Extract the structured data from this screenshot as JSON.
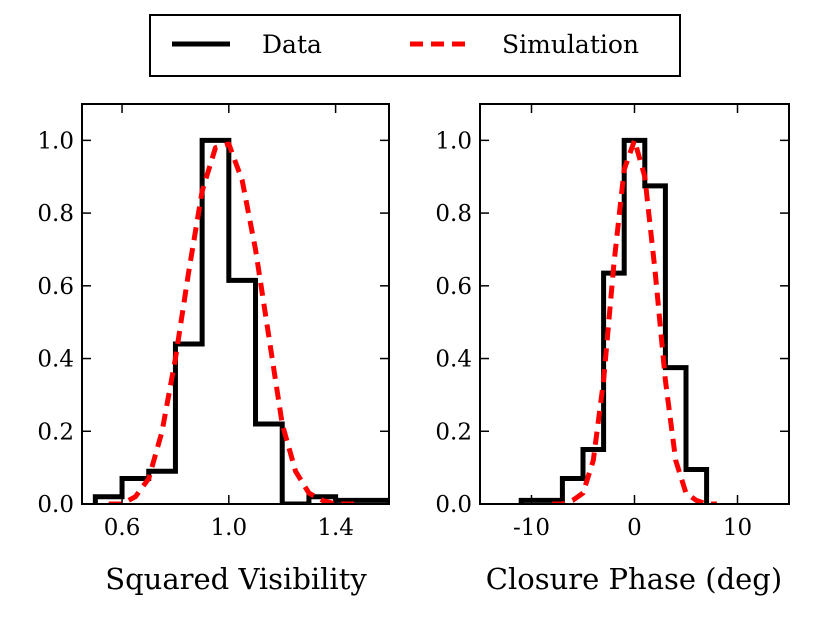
{
  "legend": {
    "entries": [
      {
        "label": "Data",
        "color": "#000000",
        "style": "solid"
      },
      {
        "label": "Simulation",
        "color": "#ff0000",
        "style": "dashed"
      }
    ],
    "placement": "top-center"
  },
  "chart_data": [
    {
      "type": "histogram",
      "title": "",
      "xlabel": "Squared Visibility",
      "ylabel": "",
      "xlim": [
        0.45,
        1.6
      ],
      "ylim": [
        0.0,
        1.1
      ],
      "xticks": [
        0.6,
        1.0,
        1.4
      ],
      "xtick_labels": [
        "0.6",
        "1.0",
        "1.4"
      ],
      "yticks": [
        0.0,
        0.2,
        0.4,
        0.6,
        0.8,
        1.0
      ],
      "ytick_labels": [
        "0.0",
        "0.2",
        "0.4",
        "0.6",
        "0.8",
        "1.0"
      ],
      "series": [
        {
          "name": "Data",
          "kind": "step",
          "bin_edges": [
            0.5,
            0.6,
            0.7,
            0.8,
            0.9,
            1.0,
            1.1,
            1.2,
            1.3,
            1.4,
            1.5,
            1.6
          ],
          "values": [
            0.02,
            0.07,
            0.09,
            0.44,
            1.0,
            0.615,
            0.22,
            0.0,
            0.02,
            0.01,
            0.01
          ]
        },
        {
          "name": "Simulation",
          "kind": "curve",
          "x": [
            0.55,
            0.6,
            0.65,
            0.7,
            0.75,
            0.8,
            0.85,
            0.9,
            0.95,
            1.0,
            1.05,
            1.1,
            1.15,
            1.2,
            1.25,
            1.3,
            1.35,
            1.4,
            1.45,
            1.5
          ],
          "values": [
            0.0,
            0.0,
            0.02,
            0.07,
            0.2,
            0.4,
            0.64,
            0.86,
            0.98,
            0.99,
            0.89,
            0.7,
            0.46,
            0.22,
            0.09,
            0.03,
            0.01,
            0.0,
            0.0,
            0.0
          ]
        }
      ]
    },
    {
      "type": "histogram",
      "title": "",
      "xlabel": "Closure Phase (deg)",
      "ylabel": "",
      "xlim": [
        -15,
        15
      ],
      "ylim": [
        0.0,
        1.1
      ],
      "xticks": [
        -10,
        0,
        10
      ],
      "xtick_labels": [
        "-10",
        "0",
        "10"
      ],
      "yticks": [
        0.0,
        0.2,
        0.4,
        0.6,
        0.8,
        1.0
      ],
      "ytick_labels": [
        "0.0",
        "0.2",
        "0.4",
        "0.6",
        "0.8",
        "1.0"
      ],
      "series": [
        {
          "name": "Data",
          "kind": "step",
          "bin_edges": [
            -11,
            -9,
            -7,
            -5,
            -3,
            -1,
            1,
            3,
            5,
            7
          ],
          "values": [
            0.01,
            0.01,
            0.07,
            0.15,
            0.635,
            1.0,
            0.875,
            0.375,
            0.095
          ]
        },
        {
          "name": "Simulation",
          "kind": "curve",
          "x": [
            -8,
            -7,
            -6,
            -5,
            -4,
            -3,
            -2,
            -1,
            0,
            1,
            2,
            3,
            4,
            5,
            6,
            7,
            8
          ],
          "values": [
            0.0,
            0.0,
            0.01,
            0.03,
            0.12,
            0.34,
            0.66,
            0.92,
            1.0,
            0.9,
            0.64,
            0.34,
            0.12,
            0.03,
            0.01,
            0.0,
            0.0
          ]
        }
      ]
    }
  ]
}
